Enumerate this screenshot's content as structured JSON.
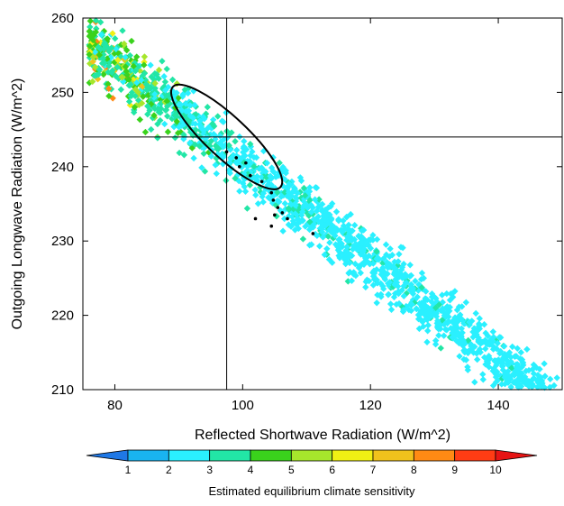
{
  "chart_data": {
    "type": "scatter",
    "title": "",
    "xlabel": "Reflected Shortwave Radiation (W/m^2)",
    "ylabel": "Outgoing Longwave Radiation (W/m^2)",
    "xlim": [
      75,
      150
    ],
    "ylim": [
      210,
      260
    ],
    "xticks": [
      80,
      100,
      120,
      140
    ],
    "yticks": [
      210,
      220,
      230,
      240,
      250,
      260
    ],
    "grid": false,
    "reference_lines": {
      "vertical_x": 97.5,
      "horizontal_y": 244
    },
    "ellipse": {
      "center_x": 97.5,
      "center_y": 244,
      "semi_major_wm2": 11.5,
      "semi_minor_wm2": 3.2,
      "angle_deg": -43
    },
    "point_cloud": {
      "description_free_params": true,
      "band_slope": -0.66,
      "band_intercept": 306.5,
      "x_range": [
        76,
        151
      ],
      "count": 1700,
      "cs_low_at": 148,
      "cs_high_at": 80
    },
    "highlight_points": [
      {
        "x": 97.5,
        "y": 242.0,
        "cs": 5
      },
      {
        "x": 99.0,
        "y": 241.2,
        "cs": 5
      },
      {
        "x": 100.5,
        "y": 240.5,
        "cs": 5
      },
      {
        "x": 101.2,
        "y": 238.8,
        "cs": 5
      },
      {
        "x": 103.0,
        "y": 238.0,
        "cs": 5
      },
      {
        "x": 104.5,
        "y": 236.5,
        "cs": 5
      },
      {
        "x": 104.8,
        "y": 235.5,
        "cs": 5
      },
      {
        "x": 105.5,
        "y": 234.5,
        "cs": 5
      },
      {
        "x": 106.2,
        "y": 233.8,
        "cs": 5
      },
      {
        "x": 105.0,
        "y": 233.5,
        "cs": 5
      },
      {
        "x": 102.0,
        "y": 233.0,
        "cs": 5
      },
      {
        "x": 104.5,
        "y": 232.0,
        "cs": 5
      },
      {
        "x": 107.0,
        "y": 233.0,
        "cs": 5
      },
      {
        "x": 111.0,
        "y": 231.0,
        "cs": 5
      },
      {
        "x": 99.5,
        "y": 240.0,
        "cs": 5
      }
    ],
    "colorbar": {
      "title": "Estimated equilibrium climate sensitivity",
      "labels": [
        "1",
        "2",
        "3",
        "4",
        "5",
        "6",
        "7",
        "8",
        "9",
        "10"
      ],
      "colors": [
        "#1f78e6",
        "#19b4f0",
        "#2af0ff",
        "#22e6a6",
        "#3ad21c",
        "#a6e62c",
        "#f0f014",
        "#f0c21c",
        "#ff8a14",
        "#ff3c14",
        "#e61414"
      ]
    }
  }
}
